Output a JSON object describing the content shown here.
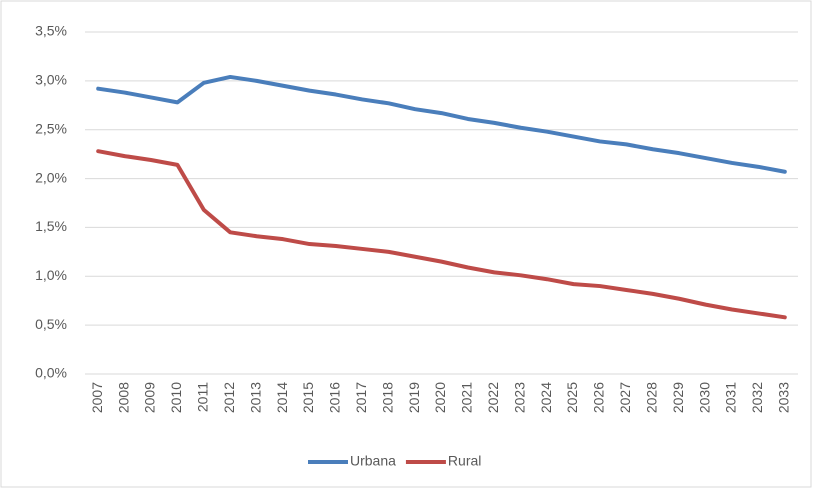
{
  "chart_data": {
    "type": "line",
    "categories": [
      "2007",
      "2008",
      "2009",
      "2010",
      "2011",
      "2012",
      "2013",
      "2014",
      "2015",
      "2016",
      "2017",
      "2018",
      "2019",
      "2020",
      "2021",
      "2022",
      "2023",
      "2024",
      "2025",
      "2026",
      "2027",
      "2028",
      "2029",
      "2030",
      "2031",
      "2032",
      "2033"
    ],
    "series": [
      {
        "name": "Urbana",
        "color": "#4a7ebb",
        "values": [
          2.92,
          2.88,
          2.83,
          2.78,
          2.98,
          3.04,
          3.0,
          2.95,
          2.9,
          2.86,
          2.81,
          2.77,
          2.71,
          2.67,
          2.61,
          2.57,
          2.52,
          2.48,
          2.43,
          2.38,
          2.35,
          2.3,
          2.26,
          2.21,
          2.16,
          2.12,
          2.07
        ]
      },
      {
        "name": "Rural",
        "color": "#be4b48",
        "values": [
          2.28,
          2.23,
          2.19,
          2.14,
          1.68,
          1.45,
          1.41,
          1.38,
          1.33,
          1.31,
          1.28,
          1.25,
          1.2,
          1.15,
          1.09,
          1.04,
          1.01,
          0.97,
          0.92,
          0.9,
          0.86,
          0.82,
          0.77,
          0.71,
          0.66,
          0.62,
          0.58
        ]
      }
    ],
    "ylim": [
      0,
      3.5
    ],
    "yticks": [
      {
        "value": 0,
        "label": "0,0%"
      },
      {
        "value": 0.5,
        "label": "0,5%"
      },
      {
        "value": 1,
        "label": "1,0%"
      },
      {
        "value": 1.5,
        "label": "1,5%"
      },
      {
        "value": 2,
        "label": "2,0%"
      },
      {
        "value": 2.5,
        "label": "2,5%"
      },
      {
        "value": 3,
        "label": "3,0%"
      },
      {
        "value": 3.5,
        "label": "3,5%"
      }
    ],
    "grid": true,
    "legend": "bottom"
  }
}
